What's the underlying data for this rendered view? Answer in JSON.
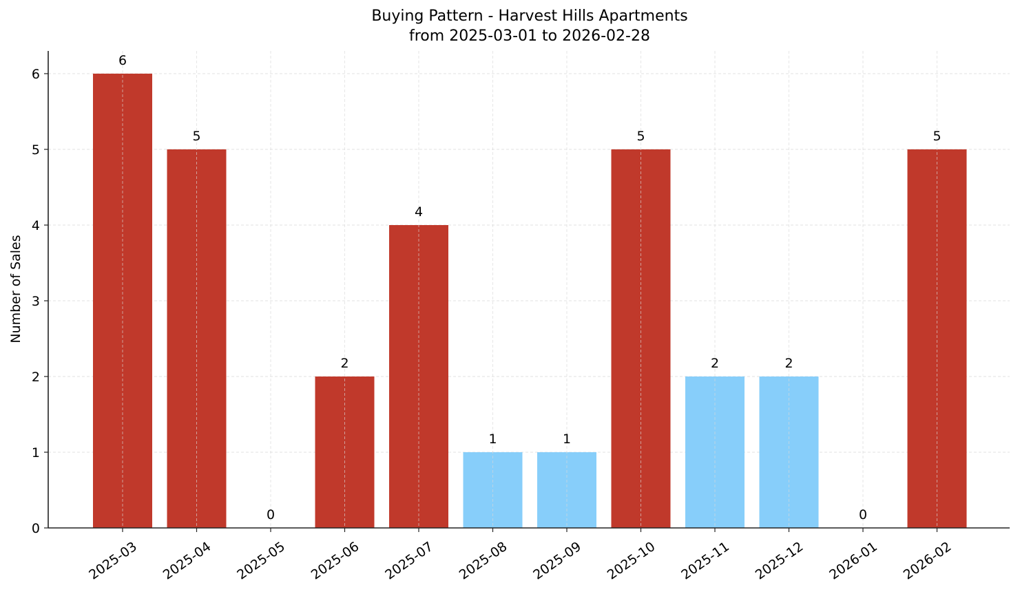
{
  "chart_data": {
    "type": "bar",
    "title": "Buying Pattern - Harvest Hills Apartments",
    "subtitle": "from 2025-03-01 to 2026-02-28",
    "xlabel": "",
    "ylabel": "Number of Sales",
    "categories": [
      "2025-03",
      "2025-04",
      "2025-05",
      "2025-06",
      "2025-07",
      "2025-08",
      "2025-09",
      "2025-10",
      "2025-11",
      "2025-12",
      "2026-01",
      "2026-02"
    ],
    "values": [
      6,
      5,
      0,
      2,
      4,
      1,
      1,
      5,
      2,
      2,
      0,
      5
    ],
    "bar_colors": [
      "#C0392B",
      "#C0392B",
      "#C0392B",
      "#C0392B",
      "#C0392B",
      "#87CEFA",
      "#87CEFA",
      "#C0392B",
      "#87CEFA",
      "#87CEFA",
      "#C0392B",
      "#C0392B"
    ],
    "data_labels": [
      "6",
      "5",
      "0",
      "2",
      "4",
      "1",
      "1",
      "5",
      "2",
      "2",
      "0",
      "5"
    ],
    "yticks": [
      0,
      1,
      2,
      3,
      4,
      5,
      6
    ],
    "ylim": [
      0,
      6.3
    ],
    "grid": true,
    "legend": null
  }
}
